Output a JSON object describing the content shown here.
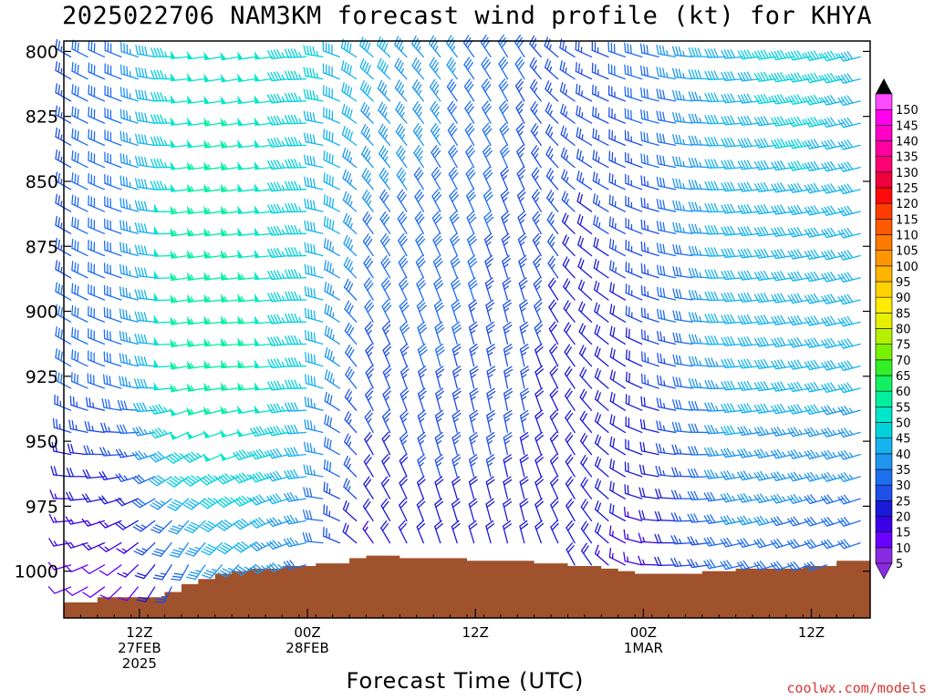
{
  "title": "2025022706 NAM3KM forecast wind profile (kt) for KHYA",
  "credit": "coolwx.com/models",
  "chart_data": {
    "type": "wind_barb_profile",
    "title": "2025022706 NAM3KM forecast wind profile (kt) for KHYA",
    "xlabel": "Forecast Time (UTC)",
    "ylabel": "",
    "y_unit": "hPa",
    "ylim": [
      1018,
      796
    ],
    "y_ticks": [
      800,
      825,
      850,
      875,
      900,
      925,
      950,
      975,
      1000
    ],
    "x_unit": "hours since 2025-02-27 06Z",
    "xlim": [
      0,
      48
    ],
    "x_ticks": [
      {
        "hour": 4.5,
        "lines": [
          "12Z",
          "27FEB",
          "2025"
        ]
      },
      {
        "hour": 14.5,
        "lines": [
          "00Z",
          "28FEB"
        ]
      },
      {
        "hour": 24.5,
        "lines": [
          "12Z"
        ]
      },
      {
        "hour": 34.5,
        "lines": [
          "00Z",
          "1MAR"
        ]
      },
      {
        "hour": 44.5,
        "lines": [
          "12Z"
        ]
      }
    ],
    "terrain_surface_hPa": [
      [
        0,
        1012
      ],
      [
        2,
        1010
      ],
      [
        4,
        1010
      ],
      [
        6,
        1008
      ],
      [
        7,
        1005
      ],
      [
        8,
        1003
      ],
      [
        9,
        1001
      ],
      [
        10,
        1000
      ],
      [
        11,
        999
      ],
      [
        13,
        998
      ],
      [
        15,
        997
      ],
      [
        17,
        995
      ],
      [
        18,
        994
      ],
      [
        20,
        995
      ],
      [
        22,
        995
      ],
      [
        24,
        996
      ],
      [
        26,
        996
      ],
      [
        28,
        997
      ],
      [
        30,
        998
      ],
      [
        32,
        999
      ],
      [
        33,
        1000
      ],
      [
        34,
        1001
      ],
      [
        36,
        1001
      ],
      [
        38,
        1000
      ],
      [
        40,
        999
      ],
      [
        42,
        999
      ],
      [
        44,
        998
      ],
      [
        46,
        996
      ],
      [
        48,
        995
      ]
    ],
    "terrain_color": "#a0522d",
    "wind_speed_colorbar": {
      "unit": "kt",
      "levels": [
        5,
        10,
        15,
        20,
        25,
        30,
        35,
        40,
        45,
        50,
        55,
        60,
        65,
        70,
        75,
        80,
        85,
        90,
        95,
        100,
        105,
        110,
        115,
        120,
        125,
        130,
        135,
        140,
        145,
        150
      ],
      "colors": [
        "#8a2be2",
        "#6a00ff",
        "#3c00e6",
        "#1a1ad9",
        "#1e4fe6",
        "#1e6ef0",
        "#1e96f0",
        "#14b4f0",
        "#00d2dc",
        "#00e6c8",
        "#00f0a0",
        "#14f064",
        "#32f028",
        "#78f000",
        "#b4f000",
        "#e6f000",
        "#ffeb00",
        "#ffd200",
        "#ffb400",
        "#ff9600",
        "#ff7a00",
        "#ff5a00",
        "#ff3c00",
        "#ff0a0a",
        "#f0003c",
        "#ff0073",
        "#ff00a0",
        "#ff00c8",
        "#ff00ee",
        "#ff4bff"
      ]
    },
    "wind_profile_keyframes": [
      {
        "hour": 0,
        "low_dir": 250,
        "low_spd": 8,
        "mid_dir": 300,
        "mid_spd": 28,
        "top_dir": 300,
        "top_spd": 25
      },
      {
        "hour": 4,
        "low_dir": 220,
        "low_spd": 10,
        "mid_dir": 285,
        "mid_spd": 32,
        "top_dir": 290,
        "top_spd": 34
      },
      {
        "hour": 7,
        "low_dir": 200,
        "low_spd": 28,
        "mid_dir": 260,
        "mid_spd": 55,
        "top_dir": 265,
        "top_spd": 50
      },
      {
        "hour": 10,
        "low_dir": 220,
        "low_spd": 35,
        "mid_dir": 265,
        "mid_spd": 58,
        "top_dir": 260,
        "top_spd": 52
      },
      {
        "hour": 14,
        "low_dir": 250,
        "low_spd": 32,
        "mid_dir": 265,
        "mid_spd": 45,
        "top_dir": 265,
        "top_spd": 45
      },
      {
        "hour": 18,
        "low_dir": 320,
        "low_spd": 15,
        "mid_dir": 335,
        "mid_spd": 25,
        "top_dir": 310,
        "top_spd": 40
      },
      {
        "hour": 22,
        "low_dir": 340,
        "low_spd": 18,
        "mid_dir": 345,
        "mid_spd": 28,
        "top_dir": 320,
        "top_spd": 35
      },
      {
        "hour": 27,
        "low_dir": 345,
        "low_spd": 20,
        "mid_dir": 350,
        "mid_spd": 24,
        "top_dir": 330,
        "top_spd": 28
      },
      {
        "hour": 31,
        "low_dir": 330,
        "low_spd": 18,
        "mid_dir": 320,
        "mid_spd": 18,
        "top_dir": 295,
        "top_spd": 26
      },
      {
        "hour": 35,
        "low_dir": 270,
        "low_spd": 15,
        "mid_dir": 290,
        "mid_spd": 22,
        "top_dir": 285,
        "top_spd": 30
      },
      {
        "hour": 40,
        "low_dir": 255,
        "low_spd": 30,
        "mid_dir": 265,
        "mid_spd": 40,
        "top_dir": 265,
        "top_spd": 42
      },
      {
        "hour": 44,
        "low_dir": 250,
        "low_spd": 28,
        "mid_dir": 260,
        "mid_spd": 40,
        "top_dir": 260,
        "top_spd": 44
      },
      {
        "hour": 48,
        "low_dir": 250,
        "low_spd": 25,
        "mid_dir": 255,
        "mid_spd": 38,
        "top_dir": 255,
        "top_spd": 42
      }
    ]
  }
}
